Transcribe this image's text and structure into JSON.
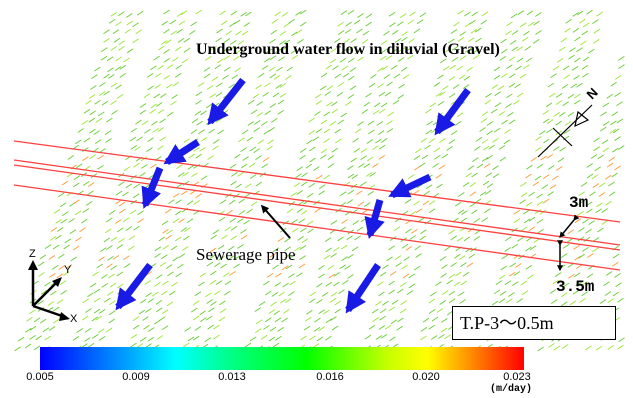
{
  "title": "Underground water flow in diluvial (Gravel)",
  "pipe_label": "Sewerage pipe",
  "dimension_top": "3m",
  "dimension_bottom": "3.5m",
  "elevation_box": "T.P-3～0.5m",
  "north_label": "N",
  "axes": {
    "z": "Z",
    "y": "Y",
    "x": "X"
  },
  "colorbar": {
    "ticks": [
      "0.005",
      "0.009",
      "0.013",
      "0.016",
      "0.020",
      "0.023"
    ],
    "unit": "(m/day)",
    "colors": [
      "#0000ff",
      "#00b4ff",
      "#00ffff",
      "#00ff80",
      "#00ff00",
      "#c8ff00",
      "#ffff00",
      "#ff8000",
      "#ff0000"
    ]
  },
  "colors": {
    "flow_arrow": "#1a1ae6",
    "pipe_line": "#ff4040",
    "vector_green": "#66cc33"
  }
}
